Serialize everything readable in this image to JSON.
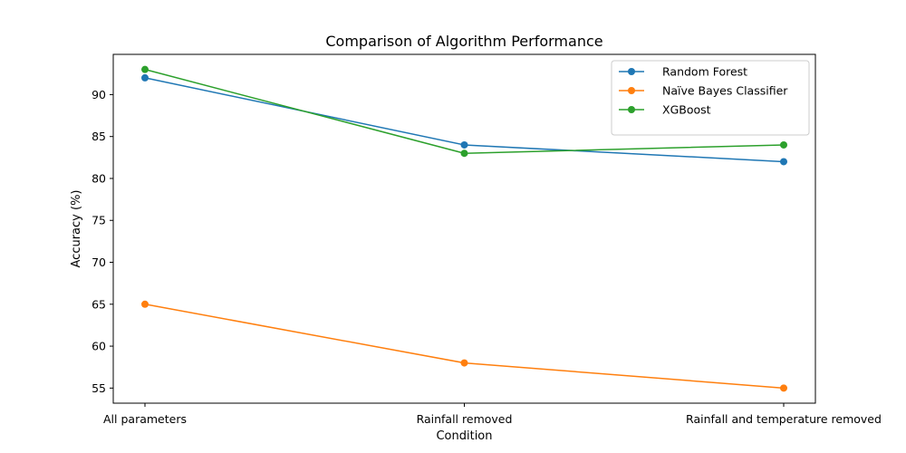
{
  "chart_data": {
    "type": "line",
    "title": "Comparison of Algorithm Performance",
    "xlabel": "Condition",
    "ylabel": "Accuracy (%)",
    "categories": [
      "All parameters",
      "Rainfall removed",
      "Rainfall and temperature removed"
    ],
    "ylim": [
      53.2,
      94.8
    ],
    "yticks": [
      55,
      60,
      65,
      70,
      75,
      80,
      85,
      90
    ],
    "grid": false,
    "legend_position": "top-right",
    "series": [
      {
        "name": "Random Forest",
        "color": "#1f77b4",
        "values": [
          92,
          84,
          82
        ]
      },
      {
        "name": "Naïve Bayes Classifier",
        "color": "#ff7f0e",
        "values": [
          65,
          58,
          55
        ]
      },
      {
        "name": "XGBoost",
        "color": "#2ca02c",
        "values": [
          93,
          83,
          84
        ]
      }
    ]
  }
}
